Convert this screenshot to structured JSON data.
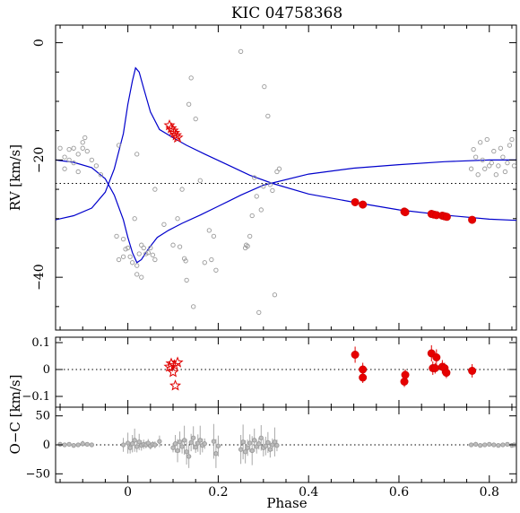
{
  "title": "KIC 04758368",
  "chart_data": [
    {
      "id": "rv",
      "type": "scatter",
      "ylabel": "RV [km/s]",
      "xlim": [
        -0.16,
        0.86
      ],
      "ylim": [
        -49,
        3
      ],
      "yticks": [
        0,
        -20,
        -40
      ],
      "systemic_velocity": -24,
      "model_curves": [
        {
          "color": "#0000cc",
          "points": [
            [
              -0.16,
              -30.2
            ],
            [
              -0.12,
              -29.5
            ],
            [
              -0.08,
              -28.2
            ],
            [
              -0.05,
              -25.5
            ],
            [
              -0.03,
              -21.5
            ],
            [
              -0.01,
              -15.5
            ],
            [
              0.0,
              -10.5
            ],
            [
              0.01,
              -6.5
            ],
            [
              0.017,
              -4.3
            ],
            [
              0.025,
              -5.0
            ],
            [
              0.035,
              -7.8
            ],
            [
              0.05,
              -11.8
            ],
            [
              0.07,
              -14.8
            ],
            [
              0.1,
              -16.2
            ],
            [
              0.13,
              -17.5
            ],
            [
              0.17,
              -19.0
            ],
            [
              0.22,
              -20.8
            ],
            [
              0.27,
              -22.6
            ],
            [
              0.32,
              -24.0
            ],
            [
              0.4,
              -25.8
            ],
            [
              0.5,
              -27.2
            ],
            [
              0.6,
              -28.5
            ],
            [
              0.7,
              -29.4
            ],
            [
              0.8,
              -30.1
            ],
            [
              0.86,
              -30.3
            ]
          ]
        },
        {
          "color": "#0000cc",
          "points": [
            [
              -0.16,
              -20.0
            ],
            [
              -0.12,
              -20.4
            ],
            [
              -0.08,
              -21.3
            ],
            [
              -0.05,
              -23.2
            ],
            [
              -0.03,
              -26.0
            ],
            [
              -0.01,
              -30.2
            ],
            [
              0.0,
              -33.2
            ],
            [
              0.01,
              -35.8
            ],
            [
              0.02,
              -37.5
            ],
            [
              0.03,
              -37.0
            ],
            [
              0.045,
              -35.2
            ],
            [
              0.065,
              -33.2
            ],
            [
              0.09,
              -32.0
            ],
            [
              0.12,
              -30.8
            ],
            [
              0.16,
              -29.4
            ],
            [
              0.2,
              -27.9
            ],
            [
              0.25,
              -26.0
            ],
            [
              0.3,
              -24.3
            ],
            [
              0.4,
              -22.4
            ],
            [
              0.5,
              -21.4
            ],
            [
              0.6,
              -20.8
            ],
            [
              0.7,
              -20.3
            ],
            [
              0.8,
              -20.0
            ],
            [
              0.86,
              -20.0
            ]
          ]
        }
      ],
      "filled_circles": [
        [
          0.503,
          -27.2
        ],
        [
          0.52,
          -27.6
        ],
        [
          0.612,
          -28.8
        ],
        [
          0.614,
          -28.9
        ],
        [
          0.672,
          -29.2
        ],
        [
          0.677,
          -29.3
        ],
        [
          0.683,
          -29.4
        ],
        [
          0.696,
          -29.5
        ],
        [
          0.701,
          -29.6
        ],
        [
          0.706,
          -29.7
        ],
        [
          0.762,
          -30.2
        ]
      ],
      "stars": [
        [
          0.092,
          -14.1
        ],
        [
          0.096,
          -14.6
        ],
        [
          0.1,
          -15.0
        ],
        [
          0.103,
          -15.4
        ],
        [
          0.107,
          -15.8
        ],
        [
          0.11,
          -16.2
        ]
      ],
      "open_circles": [
        [
          -0.15,
          -18
        ],
        [
          -0.14,
          -19.5
        ],
        [
          -0.13,
          -18.2
        ],
        [
          -0.12,
          -18
        ],
        [
          -0.11,
          -19
        ],
        [
          -0.1,
          -17
        ],
        [
          -0.09,
          -18.5
        ],
        [
          -0.08,
          -20
        ],
        [
          -0.07,
          -21
        ],
        [
          -0.14,
          -21.5
        ],
        [
          -0.12,
          -20.5
        ],
        [
          -0.1,
          -18
        ],
        [
          -0.095,
          -16.2
        ],
        [
          -0.06,
          -22.5
        ],
        [
          -0.11,
          -22
        ],
        [
          -0.13,
          -20
        ],
        [
          -0.02,
          -17.5
        ],
        [
          0.0,
          -35
        ],
        [
          0.005,
          -36.5
        ],
        [
          0.01,
          -37.5
        ],
        [
          0.02,
          -38
        ],
        [
          0.025,
          -36
        ],
        [
          0.03,
          -34.5
        ],
        [
          0.035,
          -35
        ],
        [
          0.04,
          -36
        ],
        [
          0.045,
          -35.8
        ],
        [
          0.05,
          -35
        ],
        [
          0.055,
          -36.2
        ],
        [
          0.06,
          -37
        ],
        [
          -0.025,
          -33
        ],
        [
          -0.02,
          -37
        ],
        [
          -0.01,
          -36.5
        ],
        [
          -0.005,
          -35.2
        ],
        [
          0.015,
          -30
        ],
        [
          0.02,
          -39.5
        ],
        [
          0.03,
          -40
        ],
        [
          0.06,
          -25
        ],
        [
          0.08,
          -31
        ],
        [
          0.1,
          -34.5
        ],
        [
          0.11,
          -30
        ],
        [
          0.115,
          -34.8
        ],
        [
          0.12,
          -25
        ],
        [
          0.125,
          -36.8
        ],
        [
          0.128,
          -37.2
        ],
        [
          0.13,
          -40.5
        ],
        [
          0.135,
          -10.5
        ],
        [
          0.14,
          -6
        ],
        [
          0.145,
          -45
        ],
        [
          0.15,
          -13
        ],
        [
          0.16,
          -23.5
        ],
        [
          0.17,
          -37.5
        ],
        [
          0.18,
          -32
        ],
        [
          0.185,
          -37
        ],
        [
          0.19,
          -33
        ],
        [
          0.195,
          -38.8
        ],
        [
          0.25,
          -1.5
        ],
        [
          0.26,
          -35
        ],
        [
          0.262,
          -34.5
        ],
        [
          0.265,
          -34.7
        ],
        [
          0.27,
          -33
        ],
        [
          0.275,
          -29.5
        ],
        [
          0.28,
          -23
        ],
        [
          0.285,
          -26.2
        ],
        [
          0.29,
          -46
        ],
        [
          0.295,
          -28.5
        ],
        [
          0.3,
          -24.5
        ],
        [
          0.302,
          -7.5
        ],
        [
          0.31,
          -12.5
        ],
        [
          0.315,
          -24.2
        ],
        [
          0.32,
          -25.2
        ],
        [
          0.325,
          -43
        ],
        [
          0.33,
          -22
        ],
        [
          0.335,
          -21.5
        ],
        [
          -0.01,
          -33.5
        ],
        [
          0.02,
          -19
        ],
        [
          0.76,
          -21.5
        ],
        [
          0.765,
          -18.2
        ],
        [
          0.77,
          -19.5
        ],
        [
          0.775,
          -22.5
        ],
        [
          0.78,
          -17
        ],
        [
          0.785,
          -20
        ],
        [
          0.79,
          -21.5
        ],
        [
          0.795,
          -16.5
        ],
        [
          0.8,
          -21
        ],
        [
          0.805,
          -20.5
        ],
        [
          0.81,
          -18.5
        ],
        [
          0.815,
          -22.5
        ],
        [
          0.82,
          -21
        ],
        [
          0.825,
          -18
        ],
        [
          0.83,
          -19.5
        ],
        [
          0.835,
          -22
        ],
        [
          0.84,
          -20.5
        ],
        [
          0.845,
          -17.5
        ],
        [
          0.85,
          -16.5
        ],
        [
          0.855,
          -21
        ]
      ]
    },
    {
      "id": "oc-red",
      "type": "scatter",
      "ylim": [
        -0.14,
        0.12
      ],
      "yticks": [
        0.1,
        0,
        -0.1
      ],
      "yticklabels": [
        "0.1",
        "0",
        "−0.1"
      ],
      "zero_line": 0,
      "filled_circles": [
        [
          0.503,
          0.055,
          0.03
        ],
        [
          0.52,
          0.0,
          0.025
        ],
        [
          0.52,
          -0.03,
          0.02
        ],
        [
          0.612,
          -0.045,
          0.02
        ],
        [
          0.614,
          -0.02,
          0.02
        ],
        [
          0.672,
          0.06,
          0.03
        ],
        [
          0.675,
          0.005,
          0.025
        ],
        [
          0.68,
          0.005,
          0.02
        ],
        [
          0.683,
          0.045,
          0.03
        ],
        [
          0.696,
          0.01,
          0.025
        ],
        [
          0.701,
          0.005,
          0.02
        ],
        [
          0.705,
          -0.012,
          0.02
        ],
        [
          0.762,
          -0.005,
          0.025
        ]
      ],
      "stars": [
        [
          0.092,
          0.01
        ],
        [
          0.096,
          0.022
        ],
        [
          0.1,
          -0.01
        ],
        [
          0.103,
          0.016
        ],
        [
          0.105,
          -0.06
        ],
        [
          0.11,
          0.026
        ]
      ]
    },
    {
      "id": "oc-grey",
      "type": "scatter",
      "ylim": [
        -65,
        65
      ],
      "yticks": [
        50,
        0,
        -50
      ],
      "yticklabels": [
        "50",
        "0",
        "−50"
      ],
      "zero_line": 0,
      "shared_ylabel": "O−C [km/s]",
      "xlabel": "Phase",
      "xticks": [
        0,
        0.2,
        0.4,
        0.6,
        0.8
      ],
      "xticklabels": [
        "0",
        "0.2",
        "0.4",
        "0.6",
        "0.8"
      ],
      "open_circles": [
        [
          -0.15,
          1,
          4
        ],
        [
          -0.14,
          0,
          3
        ],
        [
          -0.13,
          1,
          3
        ],
        [
          -0.12,
          -1,
          4
        ],
        [
          -0.11,
          0,
          3
        ],
        [
          -0.1,
          2,
          5
        ],
        [
          -0.09,
          1,
          3
        ],
        [
          -0.08,
          0,
          4
        ],
        [
          -0.01,
          0,
          12
        ],
        [
          0.0,
          3,
          18
        ],
        [
          0.005,
          -5,
          10
        ],
        [
          0.01,
          2,
          15
        ],
        [
          0.015,
          8,
          20
        ],
        [
          0.02,
          -3,
          10
        ],
        [
          0.025,
          5,
          14
        ],
        [
          0.03,
          -1,
          9
        ],
        [
          0.035,
          1,
          8
        ],
        [
          0.04,
          0,
          6
        ],
        [
          0.045,
          3,
          7
        ],
        [
          0.05,
          -2,
          6
        ],
        [
          0.055,
          1,
          5
        ],
        [
          0.06,
          0,
          6
        ],
        [
          0.07,
          6,
          10
        ],
        [
          0.1,
          -5,
          8
        ],
        [
          0.105,
          2,
          15
        ],
        [
          0.11,
          -10,
          20
        ],
        [
          0.115,
          5,
          18
        ],
        [
          0.12,
          -3,
          12
        ],
        [
          0.125,
          8,
          25
        ],
        [
          0.13,
          -12,
          22
        ],
        [
          0.135,
          -20,
          20
        ],
        [
          0.14,
          4,
          15
        ],
        [
          0.145,
          12,
          20
        ],
        [
          0.15,
          -4,
          10
        ],
        [
          0.155,
          3,
          15
        ],
        [
          0.16,
          8,
          25
        ],
        [
          0.165,
          -1,
          12
        ],
        [
          0.17,
          2,
          9
        ],
        [
          0.19,
          6,
          30
        ],
        [
          0.195,
          -15,
          25
        ],
        [
          0.2,
          -2,
          18
        ],
        [
          0.25,
          -8,
          25
        ],
        [
          0.255,
          5,
          30
        ],
        [
          0.26,
          -12,
          20
        ],
        [
          0.265,
          -5,
          14
        ],
        [
          0.27,
          3,
          15
        ],
        [
          0.275,
          -10,
          25
        ],
        [
          0.28,
          8,
          20
        ],
        [
          0.285,
          -3,
          12
        ],
        [
          0.29,
          2,
          10
        ],
        [
          0.295,
          12,
          22
        ],
        [
          0.3,
          -5,
          15
        ],
        [
          0.305,
          -2,
          16
        ],
        [
          0.31,
          4,
          18
        ],
        [
          0.315,
          -8,
          14
        ],
        [
          0.32,
          0,
          11
        ],
        [
          0.325,
          5,
          25
        ],
        [
          0.33,
          -1,
          10
        ],
        [
          0.76,
          0,
          3
        ],
        [
          0.77,
          1,
          4
        ],
        [
          0.78,
          -1,
          3
        ],
        [
          0.79,
          0,
          2
        ],
        [
          0.8,
          1,
          3
        ],
        [
          0.81,
          0,
          4
        ],
        [
          0.82,
          -1,
          3
        ],
        [
          0.83,
          0,
          2
        ],
        [
          0.84,
          1,
          3
        ],
        [
          0.85,
          -1,
          4
        ],
        [
          0.855,
          0,
          3
        ]
      ]
    }
  ]
}
